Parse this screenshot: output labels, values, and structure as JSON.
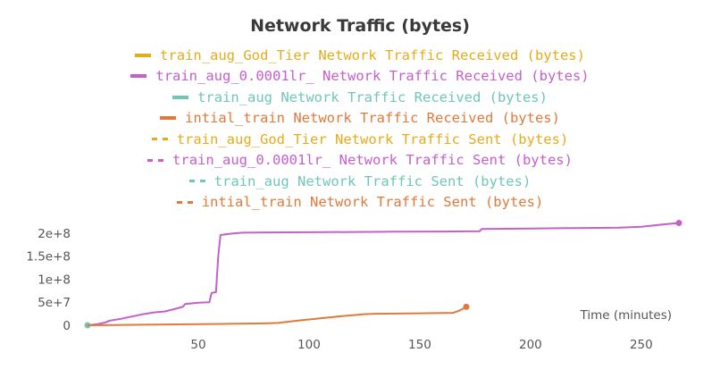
{
  "chart_data": {
    "type": "line",
    "title": "Network Traffic (bytes)",
    "xlabel": "Time (minutes)",
    "ylabel": "",
    "xlim": [
      0,
      267
    ],
    "ylim": [
      0,
      225000000
    ],
    "x_ticks": [
      50,
      100,
      150,
      200,
      250
    ],
    "x_tick_labels": [
      "50",
      "100",
      "150",
      "200",
      "250"
    ],
    "y_ticks": [
      0,
      50000000,
      100000000,
      150000000,
      200000000
    ],
    "y_tick_labels": [
      "0",
      "5e+7",
      "1e+8",
      "1.5e+8",
      "2e+8"
    ],
    "grid": false,
    "legend_position": "top",
    "series": [
      {
        "name": "train_aug_God_Tier Network Traffic Received (bytes)",
        "color": "#e5ac1a",
        "style": "solid",
        "x": [],
        "y": []
      },
      {
        "name": "train_aug_0.0001lr_ Network Traffic Received (bytes)",
        "color": "#c55fcc",
        "style": "solid",
        "x": [
          0,
          2,
          5,
          8,
          10,
          15,
          20,
          25,
          30,
          35,
          40,
          43,
          44,
          50,
          55,
          56,
          58,
          59,
          60,
          65,
          70,
          80,
          100,
          120,
          140,
          160,
          177,
          178,
          200,
          220,
          240,
          250,
          260,
          267
        ],
        "y": [
          0,
          1000000,
          3000000,
          6000000,
          10000000,
          14000000,
          19000000,
          24000000,
          28000000,
          30000000,
          36000000,
          40000000,
          46000000,
          49000000,
          50000000,
          70000000,
          72000000,
          150000000,
          196000000,
          199000000,
          201000000,
          201500000,
          202000000,
          202500000,
          203000000,
          203500000,
          204000000,
          209000000,
          210000000,
          211000000,
          212000000,
          214000000,
          219000000,
          222000000
        ]
      },
      {
        "name": "train_aug Network Traffic Received (bytes)",
        "color": "#6fc7b8",
        "style": "solid",
        "x": [
          0
        ],
        "y": [
          0
        ]
      },
      {
        "name": "intial_train Network Traffic Received (bytes)",
        "color": "#e07a3a",
        "style": "solid",
        "x": [
          0,
          20,
          40,
          60,
          80,
          86,
          95,
          105,
          115,
          125,
          130,
          140,
          150,
          160,
          165,
          168,
          171
        ],
        "y": [
          0,
          1000000,
          2000000,
          3000000,
          4000000,
          5000000,
          10000000,
          15000000,
          20000000,
          24000000,
          25000000,
          25500000,
          26000000,
          26500000,
          27000000,
          32000000,
          40000000
        ]
      },
      {
        "name": "train_aug_God_Tier Network Traffic Sent (bytes)",
        "color": "#e5ac1a",
        "style": "dashed",
        "x": [],
        "y": []
      },
      {
        "name": "train_aug_0.0001lr_ Network Traffic Sent (bytes)",
        "color": "#c55fcc",
        "style": "dashed",
        "x": [],
        "y": []
      },
      {
        "name": "train_aug Network Traffic Sent (bytes)",
        "color": "#6fc7b8",
        "style": "dashed",
        "x": [],
        "y": []
      },
      {
        "name": "intial_train Network Traffic Sent (bytes)",
        "color": "#e07a3a",
        "style": "dashed",
        "x": [],
        "y": []
      }
    ]
  }
}
